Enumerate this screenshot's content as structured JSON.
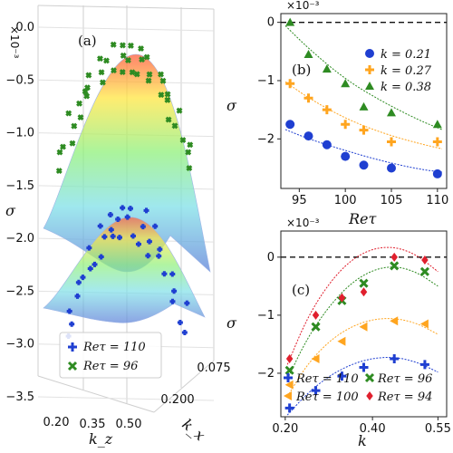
{
  "chart_data": [
    {
      "type": "surface3d",
      "panel_label": "(a)",
      "zlabel": "σ",
      "zlabel_multiplier": "×10⁻³",
      "xlabel": "k_z",
      "ylabel": "k_x",
      "zlim": [
        -3.5,
        0.0
      ],
      "zticks": [
        "0.0",
        "−0.5",
        "−1.0",
        "−1.5",
        "−2.0",
        "−2.5",
        "−3.0",
        "−3.5"
      ],
      "kz_ticks": [
        "0.20",
        "0.35",
        "0.50"
      ],
      "kx_ticks": [
        "0.200",
        "0.075"
      ],
      "colormap": "rainbow (blue low → red high)",
      "series": [
        {
          "name": "Re_τ = 110",
          "label": "Reτ = 110",
          "marker": "plus",
          "color": "#1f3fd1",
          "peak": -1.75
        },
        {
          "name": "Re_τ = 96",
          "label": "Reτ = 96",
          "marker": "x",
          "color": "#2e8b22",
          "peak": 0.0
        }
      ],
      "legend_position": "lower-left"
    },
    {
      "type": "scatter",
      "panel_label": "(b)",
      "xlabel": "Re_τ",
      "xlabel_text": "Reτ",
      "ylabel": "σ",
      "multiplier": "×10⁻³",
      "xlim": [
        93,
        111
      ],
      "ylim": [
        -2.85,
        0.15
      ],
      "xticks": [
        95,
        100,
        105,
        110
      ],
      "yticks": [
        0,
        -1,
        -2
      ],
      "xtick_labels": [
        "95",
        "100",
        "105",
        "110"
      ],
      "ytick_labels": [
        "0",
        "−1",
        "−2"
      ],
      "reference_line": 0,
      "legend_position": "top-right",
      "series": [
        {
          "name": "k = 0.21",
          "label": "k = 0.21",
          "marker": "circle",
          "color": "#1f3fd1",
          "x": [
            94,
            96,
            98,
            100,
            102,
            105,
            110
          ],
          "y": [
            -1.75,
            -1.95,
            -2.1,
            -2.3,
            -2.45,
            -2.5,
            -2.6
          ],
          "fit": [
            [
              93.5,
              -1.84
            ],
            [
              96,
              -2.0
            ],
            [
              100,
              -2.2
            ],
            [
              104,
              -2.38
            ],
            [
              108,
              -2.52
            ],
            [
              110.5,
              -2.57
            ]
          ]
        },
        {
          "name": "k = 0.27",
          "label": "k = 0.27",
          "marker": "plus",
          "color": "#ffa51f",
          "x": [
            94,
            96,
            98,
            100,
            102,
            105,
            110
          ],
          "y": [
            -1.05,
            -1.3,
            -1.5,
            -1.75,
            -1.85,
            -2.05,
            -2.05
          ],
          "fit": [
            [
              93.5,
              -1.02
            ],
            [
              96,
              -1.3
            ],
            [
              100,
              -1.65
            ],
            [
              104,
              -1.9
            ],
            [
              108,
              -2.08
            ],
            [
              110.5,
              -2.17
            ]
          ]
        },
        {
          "name": "k = 0.38",
          "label": "k = 0.38",
          "marker": "triangle",
          "color": "#2e8b22",
          "x": [
            94,
            96,
            98,
            100,
            102,
            105,
            110
          ],
          "y": [
            0.0,
            -0.55,
            -0.8,
            -1.05,
            -1.45,
            -1.55,
            -1.75
          ],
          "fit": [
            [
              93.5,
              -0.06
            ],
            [
              96,
              -0.45
            ],
            [
              100,
              -0.98
            ],
            [
              104,
              -1.36
            ],
            [
              108,
              -1.68
            ],
            [
              110.5,
              -1.84
            ]
          ]
        }
      ]
    },
    {
      "type": "scatter",
      "panel_label": "(c)",
      "xlabel": "k",
      "ylabel": "σ",
      "multiplier": "×10⁻³",
      "xlim": [
        0.19,
        0.57
      ],
      "ylim": [
        -2.75,
        0.45
      ],
      "xticks": [
        0.2,
        0.4,
        0.55
      ],
      "yticks": [
        0,
        -1,
        -2
      ],
      "xtick_labels": [
        "0.20",
        "0.40",
        "0.55"
      ],
      "ytick_labels": [
        "0",
        "−1",
        "−2"
      ],
      "reference_line": 0,
      "legend_position": "bottom",
      "series": [
        {
          "name": "Re_τ = 110",
          "label": "Reτ = 110",
          "marker": "plus",
          "color": "#1f3fd1",
          "x": [
            0.21,
            0.27,
            0.33,
            0.38,
            0.45,
            0.52
          ],
          "y": [
            -2.6,
            -2.3,
            -2.05,
            -1.9,
            -1.75,
            -1.85
          ],
          "fit": [
            [
              0.205,
              -2.72
            ],
            [
              0.25,
              -2.35
            ],
            [
              0.3,
              -2.05
            ],
            [
              0.35,
              -1.85
            ],
            [
              0.4,
              -1.74
            ],
            [
              0.45,
              -1.72
            ],
            [
              0.5,
              -1.8
            ],
            [
              0.55,
              -1.98
            ]
          ]
        },
        {
          "name": "Re_τ = 100",
          "label": "Reτ = 100",
          "marker": "triangle-left",
          "color": "#ffa51f",
          "x": [
            0.21,
            0.27,
            0.33,
            0.38,
            0.45,
            0.52
          ],
          "y": [
            -2.2,
            -1.75,
            -1.45,
            -1.2,
            -1.1,
            -1.15
          ],
          "fit": [
            [
              0.205,
              -2.4
            ],
            [
              0.25,
              -1.85
            ],
            [
              0.3,
              -1.45
            ],
            [
              0.35,
              -1.2
            ],
            [
              0.4,
              -1.07
            ],
            [
              0.45,
              -1.05
            ],
            [
              0.5,
              -1.13
            ],
            [
              0.55,
              -1.33
            ]
          ]
        },
        {
          "name": "Re_τ = 96",
          "label": "Reτ = 96",
          "marker": "x",
          "color": "#2e8b22",
          "x": [
            0.21,
            0.27,
            0.33,
            0.38,
            0.45,
            0.52
          ],
          "y": [
            -1.95,
            -1.2,
            -0.75,
            -0.45,
            -0.15,
            -0.25
          ],
          "fit": [
            [
              0.205,
              -2.1
            ],
            [
              0.25,
              -1.4
            ],
            [
              0.3,
              -0.85
            ],
            [
              0.35,
              -0.45
            ],
            [
              0.4,
              -0.22
            ],
            [
              0.45,
              -0.15
            ],
            [
              0.5,
              -0.25
            ],
            [
              0.55,
              -0.5
            ]
          ]
        },
        {
          "name": "Re_τ = 94",
          "label": "Reτ = 94",
          "marker": "diamond",
          "color": "#e0202e",
          "x": [
            0.21,
            0.27,
            0.33,
            0.38,
            0.45,
            0.52
          ],
          "y": [
            -1.75,
            -1.0,
            -0.7,
            -0.6,
            0.0,
            -0.05
          ],
          "fit": [
            [
              0.205,
              -1.85
            ],
            [
              0.25,
              -1.05
            ],
            [
              0.3,
              -0.45
            ],
            [
              0.35,
              -0.05
            ],
            [
              0.4,
              0.15
            ],
            [
              0.45,
              0.18
            ],
            [
              0.5,
              0.05
            ],
            [
              0.55,
              -0.25
            ]
          ]
        }
      ]
    }
  ]
}
